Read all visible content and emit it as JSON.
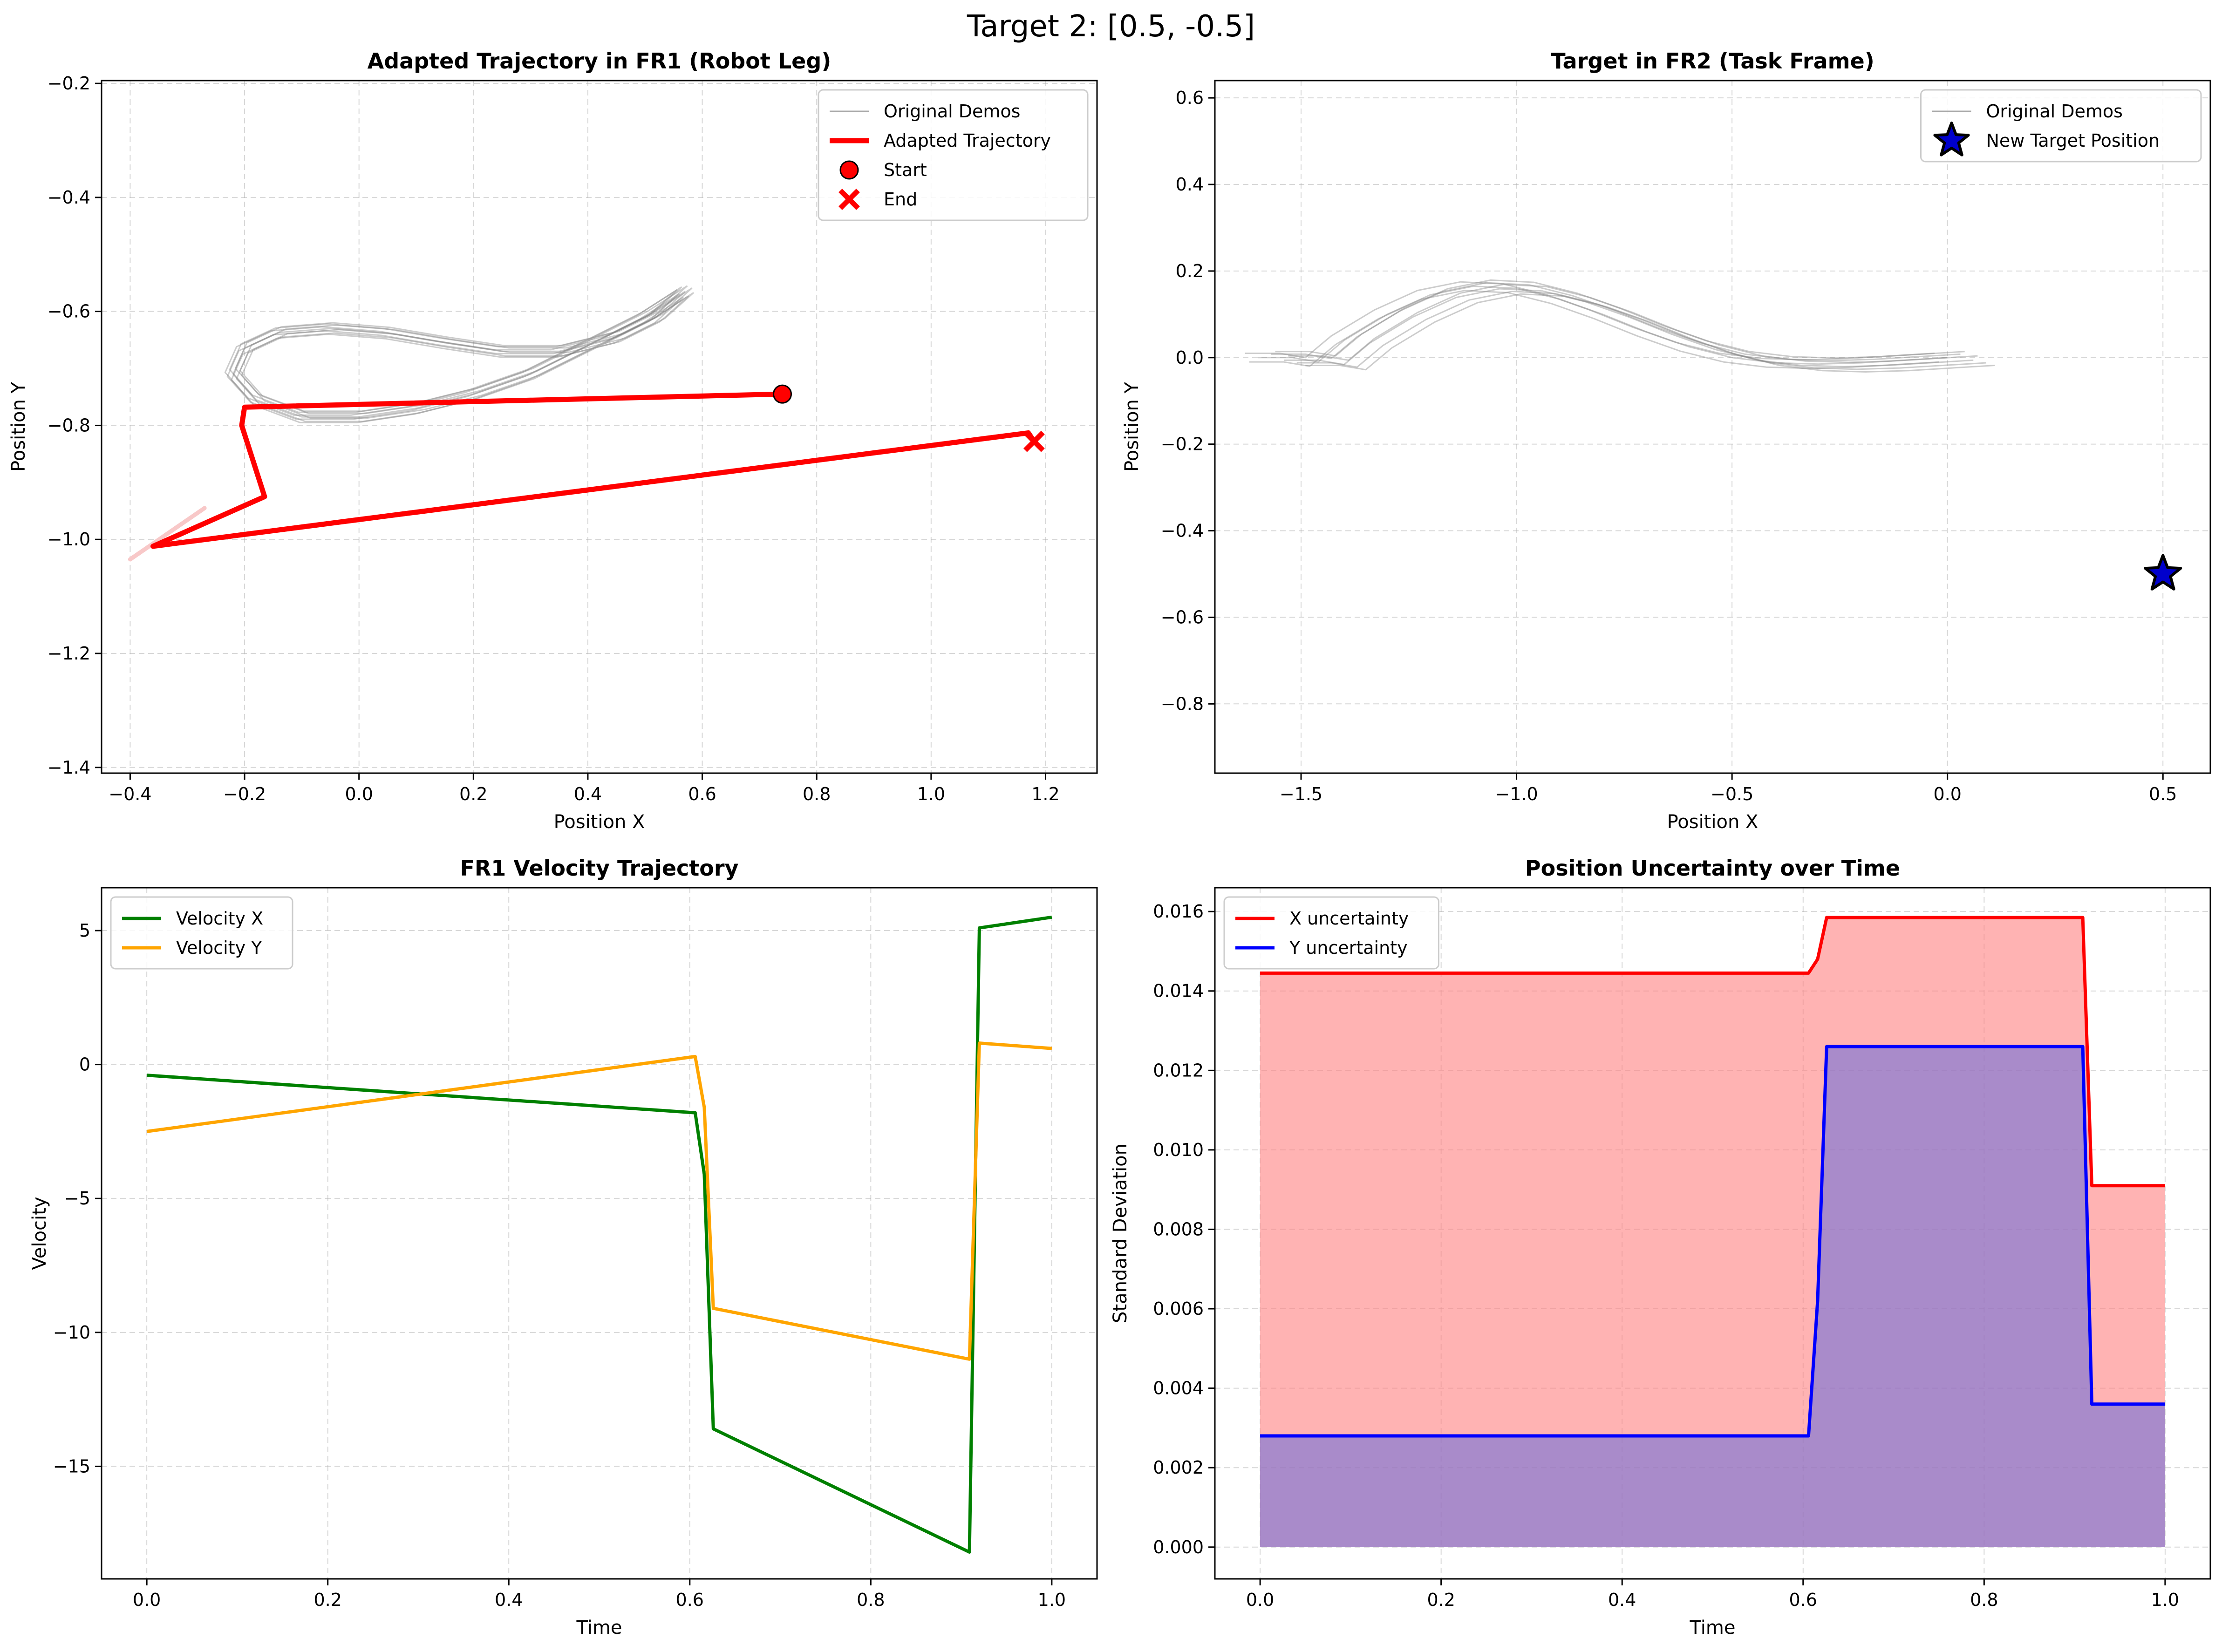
{
  "figure": {
    "suptitle": "Target 2: [0.5, -0.5]"
  },
  "chart_data": [
    {
      "id": "fr1",
      "type": "line",
      "title": "Adapted Trajectory in FR1 (Robot Leg)",
      "xlabel": "Position X",
      "ylabel": "Position Y",
      "xlim": [
        -0.45,
        1.29
      ],
      "ylim": [
        -1.41,
        -0.195
      ],
      "xticks": [
        -0.4,
        -0.2,
        0.0,
        0.2,
        0.4,
        0.6,
        0.8,
        1.0,
        1.2
      ],
      "yticks": [
        -1.4,
        -1.2,
        -1.0,
        -0.8,
        -0.6,
        -0.4,
        -0.2
      ],
      "grid": true,
      "legend": {
        "position": "top-right",
        "entries": [
          {
            "label": "Original Demos",
            "kind": "line",
            "color": "#a9a9a9"
          },
          {
            "label": "Adapted Trajectory",
            "kind": "line",
            "color": "#ff0000"
          },
          {
            "label": "Start",
            "kind": "circle",
            "color": "#ff0000"
          },
          {
            "label": "End",
            "kind": "x",
            "color": "#ff0000"
          }
        ]
      },
      "demo_base": [
        [
          0.57,
          -0.565
        ],
        [
          0.5,
          -0.61
        ],
        [
          0.4,
          -0.66
        ],
        [
          0.3,
          -0.71
        ],
        [
          0.2,
          -0.745
        ],
        [
          0.1,
          -0.77
        ],
        [
          0.0,
          -0.785
        ],
        [
          -0.1,
          -0.785
        ],
        [
          -0.18,
          -0.755
        ],
        [
          -0.22,
          -0.71
        ],
        [
          -0.2,
          -0.665
        ],
        [
          -0.14,
          -0.637
        ],
        [
          -0.05,
          -0.63
        ],
        [
          0.05,
          -0.638
        ],
        [
          0.15,
          -0.655
        ],
        [
          0.25,
          -0.67
        ],
        [
          0.35,
          -0.67
        ],
        [
          0.45,
          -0.645
        ],
        [
          0.52,
          -0.61
        ],
        [
          0.57,
          -0.565
        ]
      ],
      "demo_offsets": [
        [
          0.0,
          0.0
        ],
        [
          0.012,
          0.006
        ],
        [
          -0.01,
          -0.004
        ],
        [
          0.006,
          -0.008
        ],
        [
          -0.006,
          0.008
        ],
        [
          0.015,
          -0.002
        ],
        [
          -0.014,
          0.003
        ],
        [
          0.004,
          0.01
        ],
        [
          -0.003,
          -0.01
        ]
      ],
      "demo_color": "#808080",
      "adapted": {
        "name": "Adapted Trajectory",
        "color": "#ff0000",
        "points": [
          [
            0.74,
            -0.745
          ],
          [
            -0.2,
            -0.768
          ],
          [
            -0.205,
            -0.8
          ],
          [
            -0.165,
            -0.925
          ],
          [
            -0.36,
            -1.012
          ],
          [
            1.17,
            -0.813
          ],
          [
            1.18,
            -0.828
          ]
        ]
      },
      "faint_segment": {
        "color": "#f8c8c8",
        "points": [
          [
            -0.4,
            -1.035
          ],
          [
            -0.27,
            -0.945
          ]
        ]
      },
      "start": {
        "name": "Start",
        "x": 0.74,
        "y": -0.745
      },
      "end": {
        "name": "End",
        "x": 1.18,
        "y": -0.828
      }
    },
    {
      "id": "fr2",
      "type": "line",
      "title": "Target in FR2 (Task Frame)",
      "xlabel": "Position X",
      "ylabel": "Position Y",
      "xlim": [
        -1.7,
        0.61
      ],
      "ylim": [
        -0.96,
        0.64
      ],
      "xticks": [
        -1.5,
        -1.0,
        -0.5,
        0.0,
        0.5
      ],
      "yticks": [
        -0.8,
        -0.6,
        -0.4,
        -0.2,
        0.0,
        0.2,
        0.4,
        0.6
      ],
      "grid": true,
      "legend": {
        "position": "top-right",
        "entries": [
          {
            "label": "Original Demos",
            "kind": "line",
            "color": "#a9a9a9"
          },
          {
            "label": "New Target Position",
            "kind": "star",
            "color": "#0000cc"
          }
        ]
      },
      "demo_base": [
        [
          -1.6,
          0.0
        ],
        [
          -1.52,
          0.0
        ],
        [
          -1.46,
          -0.01
        ],
        [
          -1.4,
          0.04
        ],
        [
          -1.3,
          0.1
        ],
        [
          -1.2,
          0.145
        ],
        [
          -1.1,
          0.165
        ],
        [
          -1.0,
          0.16
        ],
        [
          -0.9,
          0.135
        ],
        [
          -0.8,
          0.1
        ],
        [
          -0.7,
          0.06
        ],
        [
          -0.6,
          0.025
        ],
        [
          -0.5,
          0.0
        ],
        [
          -0.4,
          -0.012
        ],
        [
          -0.3,
          -0.015
        ],
        [
          -0.2,
          -0.012
        ],
        [
          -0.1,
          -0.006
        ],
        [
          0.0,
          0.0
        ]
      ],
      "demo_offsets": [
        [
          0.0,
          0.0
        ],
        [
          0.03,
          0.008
        ],
        [
          0.06,
          -0.006
        ],
        [
          -0.03,
          0.01
        ],
        [
          0.09,
          -0.012
        ],
        [
          0.04,
          0.014
        ],
        [
          -0.02,
          -0.01
        ],
        [
          0.07,
          0.004
        ],
        [
          0.11,
          -0.018
        ]
      ],
      "demo_color": "#808080",
      "target": {
        "name": "New Target Position",
        "x": 0.5,
        "y": -0.5
      }
    },
    {
      "id": "vel",
      "type": "line",
      "title": "FR1 Velocity Trajectory",
      "xlabel": "Time",
      "ylabel": "Velocity",
      "xlim": [
        -0.05,
        1.05
      ],
      "ylim": [
        -19.2,
        6.6
      ],
      "xticks": [
        0.0,
        0.2,
        0.4,
        0.6,
        0.8,
        1.0
      ],
      "yticks": [
        -15,
        -10,
        -5,
        0,
        5
      ],
      "grid": true,
      "legend": {
        "position": "top-left"
      },
      "series": [
        {
          "name": "Velocity X",
          "color": "#008000",
          "points": [
            [
              0.0,
              -0.4
            ],
            [
              0.606,
              -1.8
            ],
            [
              0.616,
              -4.1
            ],
            [
              0.626,
              -13.6
            ],
            [
              0.909,
              -18.2
            ],
            [
              0.92,
              5.1
            ],
            [
              1.0,
              5.5
            ]
          ]
        },
        {
          "name": "Velocity Y",
          "color": "#ffa500",
          "points": [
            [
              0.0,
              -2.5
            ],
            [
              0.606,
              0.3
            ],
            [
              0.616,
              -1.6
            ],
            [
              0.626,
              -9.1
            ],
            [
              0.909,
              -11.0
            ],
            [
              0.92,
              0.8
            ],
            [
              1.0,
              0.6
            ]
          ]
        }
      ]
    },
    {
      "id": "unc",
      "type": "area",
      "title": "Position Uncertainty over Time",
      "xlabel": "Time",
      "ylabel": "Standard Deviation",
      "xlim": [
        -0.05,
        1.05
      ],
      "ylim": [
        -0.0008,
        0.0166
      ],
      "xticks": [
        0.0,
        0.2,
        0.4,
        0.6,
        0.8,
        1.0
      ],
      "yticks": [
        0.0,
        0.002,
        0.004,
        0.006,
        0.008,
        0.01,
        0.012,
        0.014,
        0.016
      ],
      "tick_decimals": 3,
      "grid": true,
      "legend": {
        "position": "top-left"
      },
      "series": [
        {
          "name": "X uncertainty",
          "color": "#ff0000",
          "fill": "#ff8080",
          "points": [
            [
              0.0,
              0.01445
            ],
            [
              0.606,
              0.01445
            ],
            [
              0.616,
              0.0148
            ],
            [
              0.626,
              0.01585
            ],
            [
              0.909,
              0.01585
            ],
            [
              0.919,
              0.0091
            ],
            [
              1.0,
              0.0091
            ]
          ]
        },
        {
          "name": "Y uncertainty",
          "color": "#0000ff",
          "fill": "#7070d8",
          "points": [
            [
              0.0,
              0.0028
            ],
            [
              0.606,
              0.0028
            ],
            [
              0.616,
              0.0062
            ],
            [
              0.626,
              0.0126
            ],
            [
              0.909,
              0.0126
            ],
            [
              0.919,
              0.0036
            ],
            [
              1.0,
              0.0036
            ]
          ]
        }
      ]
    }
  ]
}
